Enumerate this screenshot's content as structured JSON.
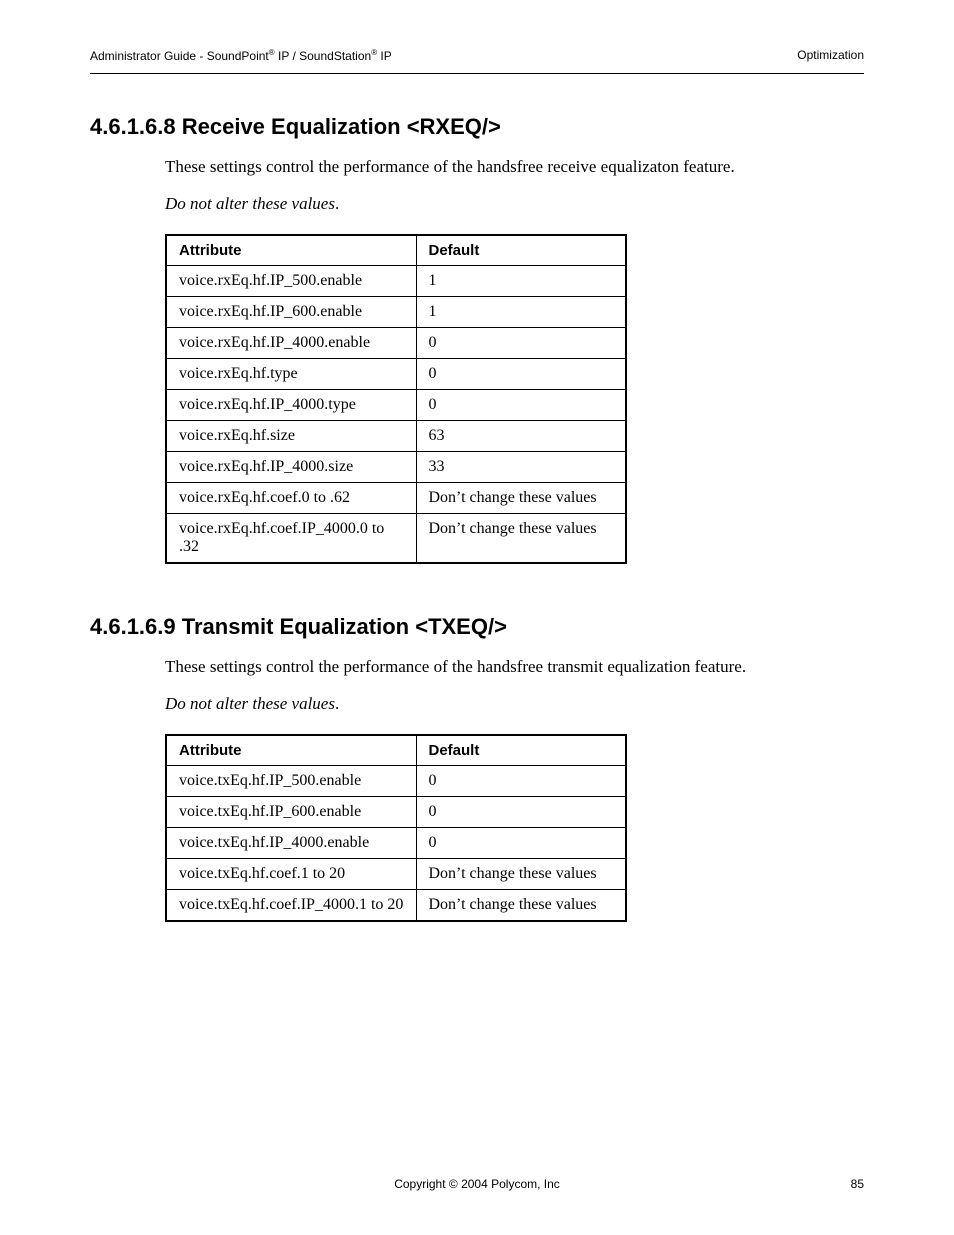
{
  "header": {
    "left_prefix": "Administrator Guide - SoundPoint",
    "left_mid": " IP / SoundStation",
    "left_suffix": " IP",
    "reg": "®",
    "right": "Optimization"
  },
  "section1": {
    "heading": "4.6.1.6.8  Receive Equalization <RXEQ/>",
    "intro": "These settings control the performance of the handsfree receive equalizaton feature.",
    "warning": "Do not alter these values",
    "warning_suffix": ".",
    "table": {
      "columns": [
        "Attribute",
        "Default"
      ],
      "rows": [
        [
          "voice.rxEq.hf.IP_500.enable",
          "1"
        ],
        [
          "voice.rxEq.hf.IP_600.enable",
          "1"
        ],
        [
          "voice.rxEq.hf.IP_4000.enable",
          "0"
        ],
        [
          "voice.rxEq.hf.type",
          "0"
        ],
        [
          "voice.rxEq.hf.IP_4000.type",
          "0"
        ],
        [
          "voice.rxEq.hf.size",
          "63"
        ],
        [
          "voice.rxEq.hf.IP_4000.size",
          "33"
        ],
        [
          "voice.rxEq.hf.coef.0 to .62",
          "Don’t change these values"
        ],
        [
          "voice.rxEq.hf.coef.IP_4000.0 to .32",
          "Don’t change these values"
        ]
      ]
    }
  },
  "section2": {
    "heading": "4.6.1.6.9  Transmit Equalization <TXEQ/>",
    "intro": "These settings control the performance of the handsfree transmit equalization feature.",
    "warning": "Do not alter these values",
    "warning_suffix": ".",
    "table": {
      "columns": [
        "Attribute",
        "Default"
      ],
      "rows": [
        [
          "voice.txEq.hf.IP_500.enable",
          "0"
        ],
        [
          "voice.txEq.hf.IP_600.enable",
          "0"
        ],
        [
          "voice.txEq.hf.IP_4000.enable",
          "0"
        ],
        [
          "voice.txEq.hf.coef.1 to 20",
          "Don’t change these values"
        ],
        [
          "voice.txEq.hf.coef.IP_4000.1 to 20",
          "Don’t change these values"
        ]
      ]
    }
  },
  "footer": {
    "center": "Copyright © 2004 Polycom, Inc",
    "page": "85"
  }
}
